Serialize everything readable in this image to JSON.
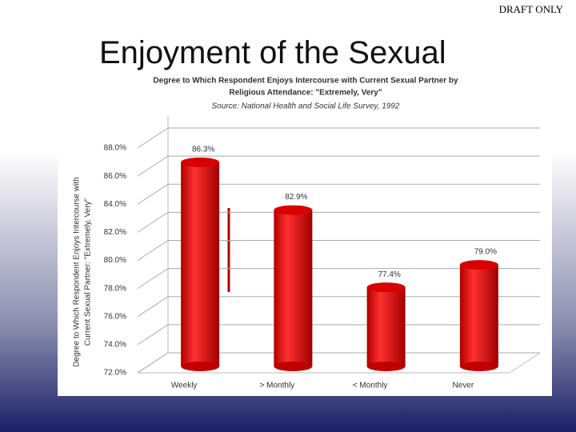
{
  "header": "DRAFT ONLY",
  "slide_title": "Enjoyment of the Sexual",
  "chart_data": {
    "type": "bar",
    "title": [
      "Degree to Which Respondent Enjoys Intercourse with Current Sexual Partner by",
      "Religious Attendance: \"Extremely, Very\""
    ],
    "subtitle": "Source: National Health and Social Life Survey, 1992",
    "y_label": [
      "Degree to Which Respondent Enjoys Intercourse with",
      "Current Sexual Partner: \"Extremely, Very\""
    ],
    "categories": [
      "Weekly",
      "> Monthly",
      "< Monthly",
      "Never"
    ],
    "values": [
      86.3,
      82.9,
      77.4,
      79.0
    ],
    "value_labels": [
      "86.3%",
      "82.9%",
      "77.4%",
      "79.0%"
    ],
    "color": "#e81010",
    "ylim": [
      72,
      88
    ],
    "yticks": [
      {
        "value": 72,
        "label": "72.0%"
      },
      {
        "value": 74,
        "label": "74.0%"
      },
      {
        "value": 76,
        "label": "76.0%"
      },
      {
        "value": 78,
        "label": "78.0%"
      },
      {
        "value": 80,
        "label": "80.0%"
      },
      {
        "value": 82,
        "label": "82.0%"
      },
      {
        "value": 84,
        "label": "84.0%"
      },
      {
        "value": 86,
        "label": "86.0%"
      },
      {
        "value": 88,
        "label": "88.0%"
      }
    ],
    "grid": true
  }
}
